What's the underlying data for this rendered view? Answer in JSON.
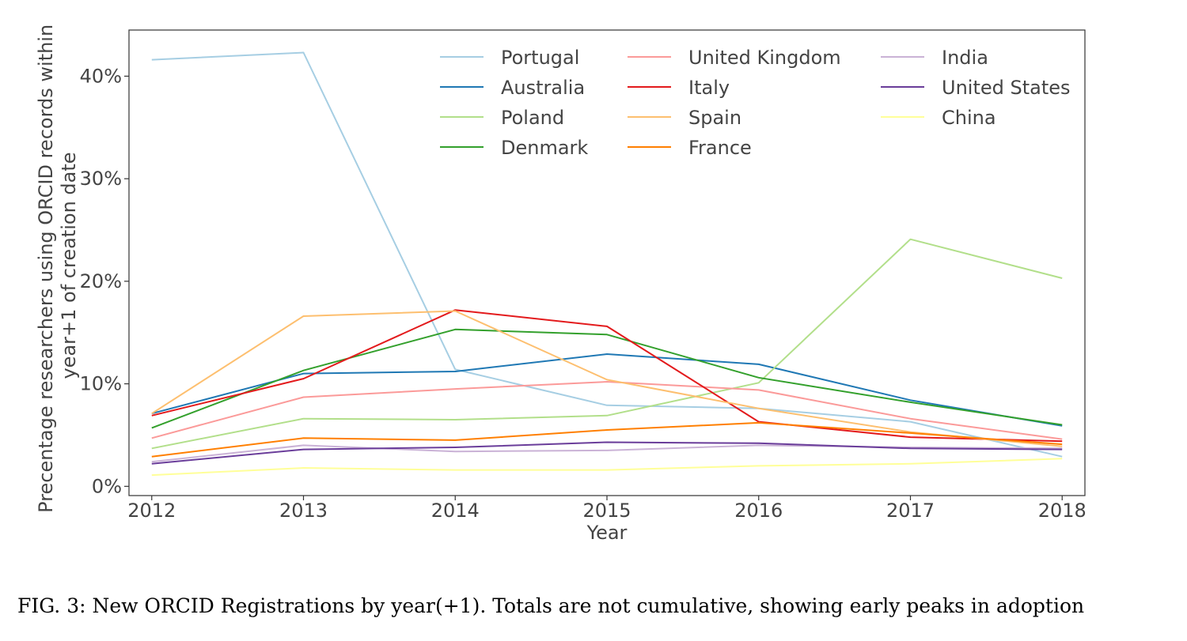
{
  "chart_data": {
    "type": "line",
    "xlabel": "Year",
    "ylabel": [
      "Precentage researchers using ORCID records within",
      "year+1 of creation date"
    ],
    "x": [
      2012,
      2013,
      2014,
      2015,
      2016,
      2017,
      2018
    ],
    "x_tick_labels": [
      "2012",
      "2013",
      "2014",
      "2015",
      "2016",
      "2017",
      "2018"
    ],
    "y_ticks": [
      0,
      10,
      20,
      30,
      40
    ],
    "y_tick_labels": [
      "0%",
      "10%",
      "20%",
      "30%",
      "40%"
    ],
    "ylim": [
      -0.9,
      44.5
    ],
    "xlim": [
      2011.85,
      2018.15
    ],
    "grid": false,
    "legend_position": "top-right",
    "series": [
      {
        "name": "Portugal",
        "color": "#a6cee3",
        "values": [
          41.6,
          42.3,
          11.4,
          7.9,
          7.6,
          6.3,
          2.9
        ]
      },
      {
        "name": "Australia",
        "color": "#1f78b4",
        "values": [
          7.1,
          11.0,
          11.2,
          12.9,
          11.9,
          8.4,
          5.9
        ]
      },
      {
        "name": "Poland",
        "color": "#b2df8a",
        "values": [
          3.7,
          6.6,
          6.5,
          6.9,
          10.1,
          24.1,
          20.3
        ]
      },
      {
        "name": "Denmark",
        "color": "#33a02c",
        "values": [
          5.7,
          11.3,
          15.3,
          14.8,
          10.6,
          8.2,
          6.0
        ]
      },
      {
        "name": "United Kingdom",
        "color": "#fb9a99",
        "values": [
          4.7,
          8.7,
          9.5,
          10.2,
          9.4,
          6.6,
          4.6
        ]
      },
      {
        "name": "Italy",
        "color": "#e31a1c",
        "values": [
          6.9,
          10.5,
          17.2,
          15.6,
          6.3,
          4.8,
          4.4
        ]
      },
      {
        "name": "Spain",
        "color": "#fdbf6f",
        "values": [
          7.1,
          16.6,
          17.1,
          10.4,
          7.6,
          5.3,
          3.9
        ]
      },
      {
        "name": "France",
        "color": "#ff7f00",
        "values": [
          2.9,
          4.7,
          4.5,
          5.5,
          6.2,
          5.2,
          4.1
        ]
      },
      {
        "name": "India",
        "color": "#cab2d6",
        "values": [
          2.4,
          4.0,
          3.4,
          3.5,
          4.0,
          3.8,
          3.7
        ]
      },
      {
        "name": "United States",
        "color": "#6a3d9a",
        "values": [
          2.2,
          3.6,
          3.8,
          4.3,
          4.2,
          3.7,
          3.6
        ]
      },
      {
        "name": "China",
        "color": "#ffff99",
        "values": [
          1.1,
          1.8,
          1.6,
          1.6,
          2.0,
          2.2,
          2.7
        ]
      }
    ]
  },
  "caption": "FIG. 3: New ORCID Registrations by year(+1). Totals are not cumulative, showing early peaks in adoption"
}
